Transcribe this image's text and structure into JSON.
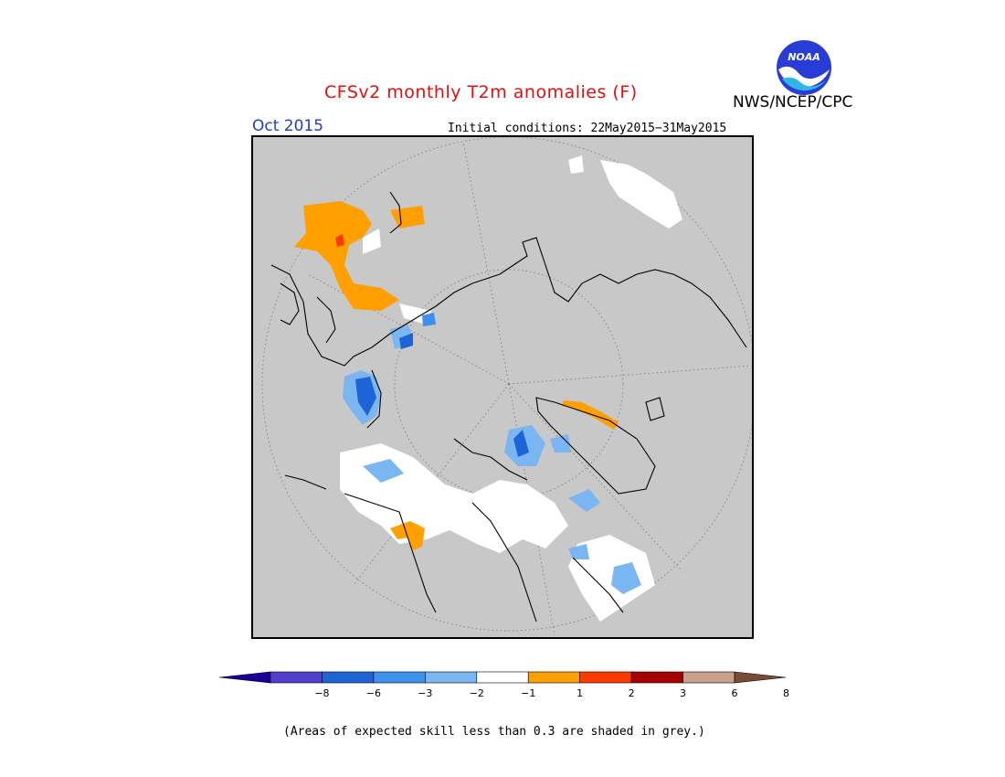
{
  "header": {
    "title": "CFSv2 monthly T2m anomalies (F)",
    "agency": "NWS/NCEP/CPC",
    "logo_text": "NOAA",
    "month": "Oct 2015",
    "initial_conditions": "Initial conditions: 22May2015−31May2015"
  },
  "colors": {
    "land_grey": "#c8c8c8",
    "ocean_grey": "#c8c8c8",
    "title_red": "#e01010",
    "month_blue": "#2040c0"
  },
  "colorbar": {
    "labels": [
      "−8",
      "−6",
      "−3",
      "−2",
      "−1",
      "1",
      "2",
      "3",
      "6",
      "8"
    ],
    "colors": [
      "#1a0099",
      "#4f3fcc",
      "#1f64d6",
      "#3d92f0",
      "#79b6f2",
      "#ffffff",
      "#ff9f00",
      "#ff3a00",
      "#a60000",
      "#c8a08e",
      "#7a4b35"
    ]
  },
  "footnote": "(Areas of expected skill less than 0.3 are shaded in grey.)"
}
